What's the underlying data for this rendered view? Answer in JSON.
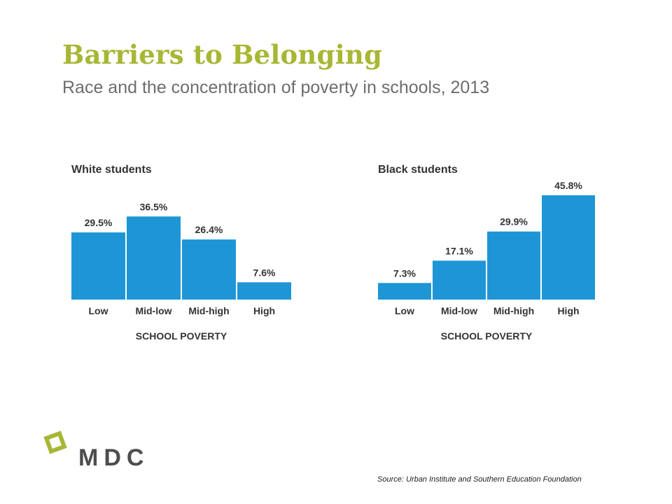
{
  "header": {
    "title": "Barriers to Belonging",
    "subtitle": "Race and the concentration of poverty in schools, 2013"
  },
  "chart_data": [
    {
      "type": "bar",
      "title": "White students",
      "categories": [
        "Low",
        "Mid-low",
        "Mid-high",
        "High"
      ],
      "values": [
        29.5,
        36.5,
        26.4,
        7.6
      ],
      "data_labels": [
        "29.5%",
        "36.5%",
        "26.4%",
        "7.6%"
      ],
      "xlabel": "SCHOOL POVERTY",
      "ylabel": "",
      "ylim": [
        0,
        50
      ],
      "bar_color": "#1e96d6",
      "grid": false
    },
    {
      "type": "bar",
      "title": "Black students",
      "categories": [
        "Low",
        "Mid-low",
        "Mid-high",
        "High"
      ],
      "values": [
        7.3,
        17.1,
        29.9,
        45.8
      ],
      "data_labels": [
        "7.3%",
        "17.1%",
        "29.9%",
        "45.8%"
      ],
      "xlabel": "SCHOOL POVERTY",
      "ylabel": "",
      "ylim": [
        0,
        50
      ],
      "bar_color": "#1e96d6",
      "grid": false
    }
  ],
  "footer": {
    "source": "Source: Urban Institute and Southern Education Foundation",
    "logo_text": "MDC",
    "logo_text_color": "#4d4d4f",
    "logo_mark_color": "#a7b734"
  }
}
